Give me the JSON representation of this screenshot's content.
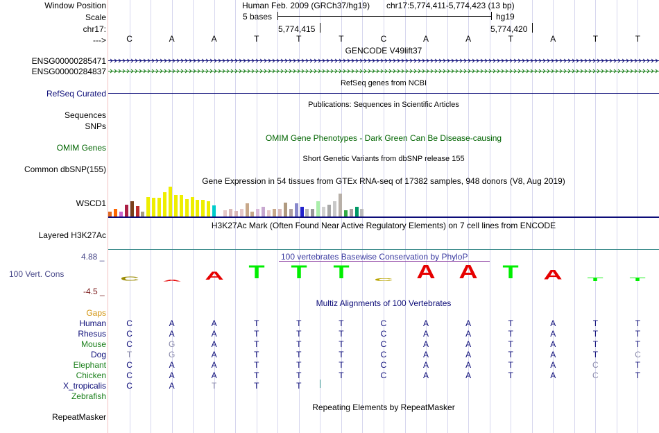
{
  "header": {
    "window_position_label": "Window Position",
    "scale_label": "Scale",
    "chrom_label": "chr17:",
    "arrow_label": "--->",
    "assembly_text": "Human Feb. 2009 (GRCh37/hg19)",
    "position_text": "chr17:5,774,411-5,774,423 (13 bp)",
    "scale_text": "5 bases",
    "scale_db": "hg19",
    "pos1": "5,774,415",
    "pos2": "5,774,420"
  },
  "bases": [
    "C",
    "A",
    "A",
    "T",
    "T",
    "T",
    "C",
    "A",
    "A",
    "T",
    "A",
    "T",
    "T"
  ],
  "tracks": {
    "gencode_title": "GENCODE V49lift37",
    "gene1": "ENSG00000285471",
    "gene2": "ENSG00000284837",
    "refseq_label": "RefSeq Curated",
    "refseq_title": "RefSeq genes from NCBI",
    "pubs_title": "Publications: Sequences in Scientific Articles",
    "sequences_label": "Sequences",
    "snps_label": "SNPs",
    "omim_title": "OMIM Gene Phenotypes - Dark Green Can Be Disease-causing",
    "omim_label": "OMIM Genes",
    "dbsnp_title": "Short Genetic Variants from dbSNP release 155",
    "dbsnp_label": "Common dbSNP(155)",
    "gtex_title": "Gene Expression in 54 tissues from GTEx RNA-seq of 17382 samples, 948 donors (V8, Aug 2019)",
    "gtex_label": "WSCD1",
    "h3k27_title": "H3K27Ac Mark (Often Found Near Active Regulatory Elements) on 7 cell lines from ENCODE",
    "h3k27_label": "Layered H3K27Ac",
    "cons_max": "4.88 _",
    "cons_min": "-4.5 _",
    "cons_label": "100 Vert. Cons",
    "cons_title": "100 vertebrates Basewise Conservation by PhyloP",
    "multiz_title": "Multiz Alignments of 100 Vertebrates",
    "gaps_label": "Gaps",
    "repeat_title": "Repeating Elements by RepeatMasker",
    "repeat_label": "RepeatMasker"
  },
  "colors": {
    "gene1": "#0c0c78",
    "gene2": "#1a7f1a",
    "omim": "#006400",
    "refseq": "#0c0c78",
    "cons_pos": "#e60000",
    "cons_neg": "#7a0000",
    "gaps": "#d2920a"
  },
  "gtex_bars": [
    {
      "v": 0.17,
      "c": "#e26a22"
    },
    {
      "v": 0.26,
      "c": "#ff6600"
    },
    {
      "v": 0.17,
      "c": "#cc66cc"
    },
    {
      "v": 0.38,
      "c": "#ab1f45"
    },
    {
      "v": 0.5,
      "c": "#7a3f1b"
    },
    {
      "v": 0.33,
      "c": "#bd2c2c"
    },
    {
      "v": 0.17,
      "c": "#a69e82"
    },
    {
      "v": 0.64,
      "c": "#eeee00"
    },
    {
      "v": 0.62,
      "c": "#eeee00"
    },
    {
      "v": 0.62,
      "c": "#eeee00"
    },
    {
      "v": 0.79,
      "c": "#eeee00"
    },
    {
      "v": 0.98,
      "c": "#eeee00"
    },
    {
      "v": 0.71,
      "c": "#eeee00"
    },
    {
      "v": 0.71,
      "c": "#eeee00"
    },
    {
      "v": 0.57,
      "c": "#eeee00"
    },
    {
      "v": 0.64,
      "c": "#eeee00"
    },
    {
      "v": 0.55,
      "c": "#eeee00"
    },
    {
      "v": 0.55,
      "c": "#eeee00"
    },
    {
      "v": 0.5,
      "c": "#eeee00"
    },
    {
      "v": 0.36,
      "c": "#00cccc"
    },
    {
      "v": 0.0,
      "c": "#ffffff"
    },
    {
      "v": 0.21,
      "c": "#e6c8c8"
    },
    {
      "v": 0.26,
      "c": "#d9b8b8"
    },
    {
      "v": 0.19,
      "c": "#d9b8b8"
    },
    {
      "v": 0.24,
      "c": "#e6c8c8"
    },
    {
      "v": 0.43,
      "c": "#c8a88a"
    },
    {
      "v": 0.17,
      "c": "#c8a88a"
    },
    {
      "v": 0.26,
      "c": "#d9b8d9"
    },
    {
      "v": 0.31,
      "c": "#c8a8d0"
    },
    {
      "v": 0.21,
      "c": "#e6c8c8"
    },
    {
      "v": 0.24,
      "c": "#c8a88a"
    },
    {
      "v": 0.24,
      "c": "#d9b8b8"
    },
    {
      "v": 0.45,
      "c": "#b09a80"
    },
    {
      "v": 0.26,
      "c": "#b0a0a0"
    },
    {
      "v": 0.43,
      "c": "#8888cc"
    },
    {
      "v": 0.31,
      "c": "#2222cc"
    },
    {
      "v": 0.26,
      "c": "#b8b8b8"
    },
    {
      "v": 0.26,
      "c": "#999999"
    },
    {
      "v": 0.5,
      "c": "#aaeeaa"
    },
    {
      "v": 0.31,
      "c": "#d0d0d0"
    },
    {
      "v": 0.38,
      "c": "#a8a8a8"
    },
    {
      "v": 0.5,
      "c": "#c8c8c8"
    },
    {
      "v": 0.74,
      "c": "#b8b0a8"
    },
    {
      "v": 0.21,
      "c": "#33aa44"
    },
    {
      "v": 0.24,
      "c": "#a8a0a0"
    },
    {
      "v": 0.31,
      "c": "#009966"
    },
    {
      "v": 0.24,
      "c": "#bbbbbb"
    }
  ],
  "conservation": [
    {
      "b": "C",
      "v": -0.3,
      "c": "#9a8a00"
    },
    {
      "b": "A",
      "v": -0.1,
      "c": "#e60000"
    },
    {
      "b": "A",
      "v": 0.6,
      "c": "#e60000"
    },
    {
      "b": "T",
      "v": 0.95,
      "c": "#00ee00"
    },
    {
      "b": "T",
      "v": 0.95,
      "c": "#00ee00"
    },
    {
      "b": "T",
      "v": 0.95,
      "c": "#00ee00"
    },
    {
      "b": "C",
      "v": -0.2,
      "c": "#b8a400"
    },
    {
      "b": "A",
      "v": 1.0,
      "c": "#e60000"
    },
    {
      "b": "A",
      "v": 1.0,
      "c": "#e60000"
    },
    {
      "b": "T",
      "v": 0.95,
      "c": "#00ee00"
    },
    {
      "b": "A",
      "v": 0.7,
      "c": "#e60000"
    },
    {
      "b": "T",
      "v": 0.25,
      "c": "#00ee00"
    },
    {
      "b": "T",
      "v": 0.25,
      "c": "#00ee00"
    }
  ],
  "alignment": [
    {
      "species": "Human",
      "color": "#0c0c78",
      "bases": [
        "C",
        "A",
        "A",
        "T",
        "T",
        "T",
        "C",
        "A",
        "A",
        "T",
        "A",
        "T",
        "T"
      ]
    },
    {
      "species": "Rhesus",
      "color": "#0c0c78",
      "bases": [
        "C",
        "A",
        "A",
        "T",
        "T",
        "T",
        "C",
        "A",
        "A",
        "T",
        "A",
        "T",
        "T"
      ]
    },
    {
      "species": "Mouse",
      "color": "#1a7f1a",
      "bases": [
        "C",
        "G",
        "A",
        "T",
        "T",
        "T",
        "C",
        "A",
        "A",
        "T",
        "A",
        "T",
        "T"
      ]
    },
    {
      "species": "Dog",
      "color": "#0c0c78",
      "bases": [
        "T",
        "G",
        "A",
        "T",
        "T",
        "T",
        "C",
        "A",
        "A",
        "T",
        "A",
        "T",
        "C"
      ]
    },
    {
      "species": "Elephant",
      "color": "#1a7f1a",
      "bases": [
        "C",
        "A",
        "A",
        "T",
        "T",
        "T",
        "C",
        "A",
        "A",
        "T",
        "A",
        "C",
        "T"
      ]
    },
    {
      "species": "Chicken",
      "color": "#1a7f1a",
      "bases": [
        "C",
        "A",
        "A",
        "T",
        "T",
        "T",
        "C",
        "A",
        "A",
        "T",
        "A",
        "C",
        "T"
      ]
    },
    {
      "species": "X_tropicalis",
      "color": "#0c0c78",
      "bases": [
        "C",
        "A",
        "T",
        "T",
        "T",
        "",
        "",
        "",
        "",
        "",
        "",
        "",
        ""
      ]
    },
    {
      "species": "Zebrafish",
      "color": "#1a7f1a",
      "bases": [
        "",
        "",
        "",
        "",
        "",
        "",
        "",
        "",
        "",
        "",
        "",
        "",
        ""
      ]
    }
  ]
}
